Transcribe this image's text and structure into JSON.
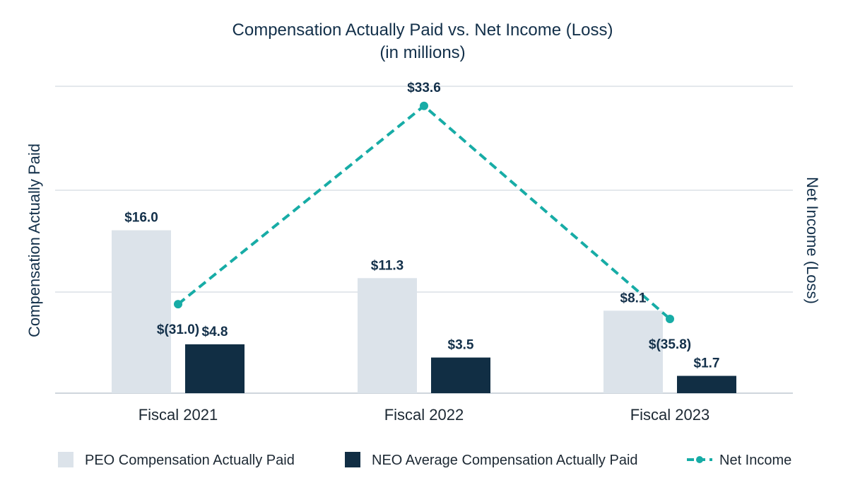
{
  "chart_data": {
    "type": "bar",
    "title": "Compensation Actually Paid vs. Net Income (Loss)",
    "subtitle": "(in millions)",
    "ylabel_left": "Compensation Actually Paid",
    "ylabel_right": "Net Income (Loss)",
    "categories": [
      "Fiscal 2021",
      "Fiscal 2022",
      "Fiscal 2023"
    ],
    "grid": true,
    "legend_position": "bottom",
    "y_left_range": [
      0,
      30
    ],
    "y_right_range": [
      -60,
      40
    ],
    "series": [
      {
        "name": "PEO Compensation Actually Paid",
        "type": "bar",
        "axis": "left",
        "color": "#dce3ea",
        "values": [
          16.0,
          11.3,
          8.1
        ],
        "labels": [
          "$16.0",
          "$11.3",
          "$8.1"
        ]
      },
      {
        "name": "NEO Average Compensation Actually Paid",
        "type": "bar",
        "axis": "left",
        "color": "#112e44",
        "values": [
          4.8,
          3.5,
          1.7
        ],
        "labels": [
          "$4.8",
          "$3.5",
          "$1.7"
        ]
      },
      {
        "name": "Net Income",
        "type": "line",
        "style": "dashed",
        "axis": "right",
        "color": "#17aca6",
        "values": [
          -31.0,
          33.6,
          -35.8
        ],
        "labels": [
          "$(31.0)",
          "$33.6",
          "$(35.8)"
        ]
      }
    ]
  }
}
